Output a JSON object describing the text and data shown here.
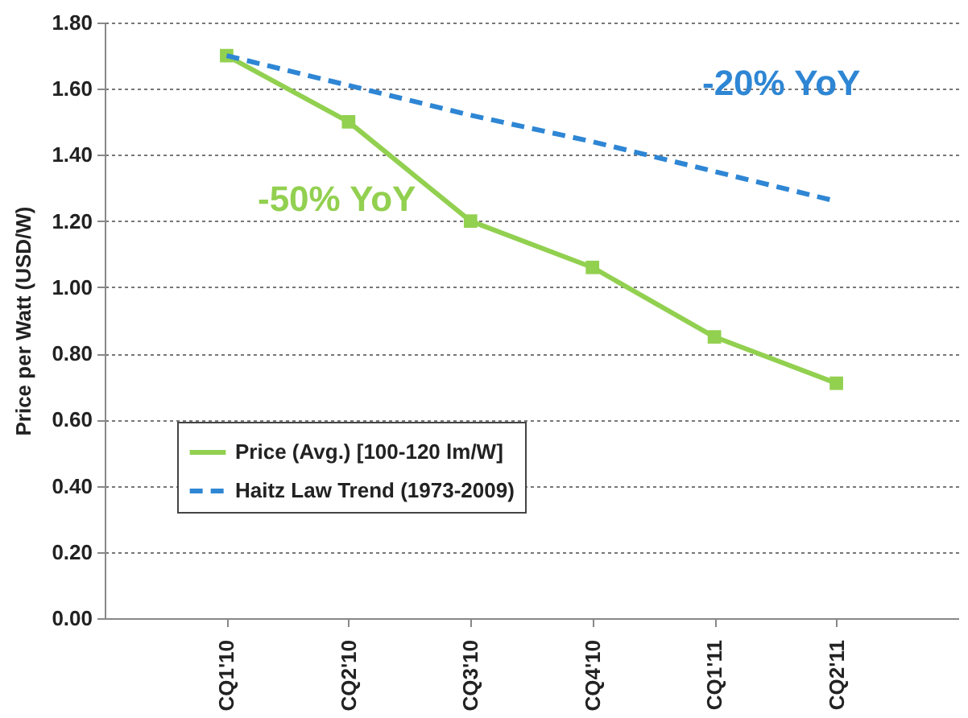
{
  "chart_data": {
    "type": "line",
    "ylabel": "Price per Watt (USD/W)",
    "categories": [
      "CQ1'10",
      "CQ2'10",
      "CQ3'10",
      "CQ4'10",
      "CQ1'11",
      "CQ2'11"
    ],
    "series": [
      {
        "name": "Price (Avg.) [100-120 lm/W]",
        "color": "#92d050",
        "values": [
          1.7,
          1.5,
          1.2,
          1.06,
          0.85,
          0.71
        ],
        "marker": "square",
        "line_style": "solid"
      },
      {
        "name": "Haitz Law Trend (1973-2009)",
        "color": "#2e86d4",
        "values": [
          1.7,
          1.61,
          1.52,
          1.44,
          1.35,
          1.26
        ],
        "marker": "none",
        "line_style": "dashed"
      }
    ],
    "ylim": [
      0,
      1.8
    ],
    "yticks": [
      {
        "value": 0,
        "label": "0.00"
      },
      {
        "value": 0.2,
        "label": "0.20"
      },
      {
        "value": 0.4,
        "label": "0.40"
      },
      {
        "value": 0.6,
        "label": "0.60"
      },
      {
        "value": 0.8,
        "label": "0.80"
      },
      {
        "value": 1.0,
        "label": "1.00"
      },
      {
        "value": 1.2,
        "label": "1.20"
      },
      {
        "value": 1.4,
        "label": "1.40"
      },
      {
        "value": 1.6,
        "label": "1.60"
      },
      {
        "value": 1.8,
        "label": "1.80"
      }
    ],
    "grid": "y",
    "legend": "left",
    "annotations": [
      "-50% YoY",
      "-20% YoY"
    ]
  }
}
